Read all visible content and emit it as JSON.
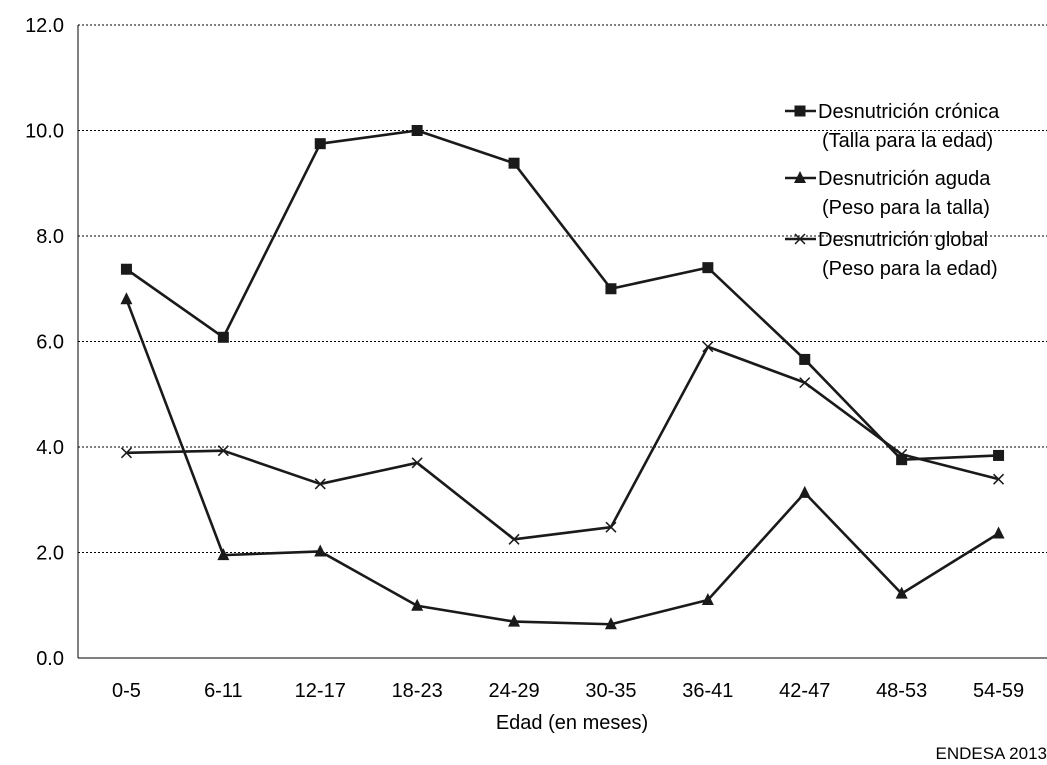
{
  "chart_data": {
    "type": "line",
    "xlabel": "Edad (en meses)",
    "ylabel": "",
    "ylim": [
      0,
      12
    ],
    "y_ticks": [
      "0.0",
      "2.0",
      "4.0",
      "6.0",
      "8.0",
      "10.0",
      "12.0"
    ],
    "grid": "horizontal dotted",
    "legend_position": "right",
    "categories": [
      "0-5",
      "6-11",
      "12-17",
      "18-23",
      "24-29",
      "30-35",
      "36-41",
      "42-47",
      "48-53",
      "54-59"
    ],
    "series": [
      {
        "name": [
          "Desnutrición crónica",
          "(Talla para la edad)"
        ],
        "marker": "square",
        "values": [
          7.37,
          6.08,
          9.75,
          10.0,
          9.38,
          7.0,
          7.4,
          5.66,
          3.76,
          3.84
        ]
      },
      {
        "name": [
          "Desnutrición aguda",
          "(Peso para la talla)"
        ],
        "marker": "triangle",
        "values": [
          6.8,
          1.95,
          2.02,
          0.99,
          0.69,
          0.64,
          1.1,
          3.13,
          1.22,
          2.36
        ]
      },
      {
        "name": [
          "Desnutrición global",
          "(Peso para la edad)"
        ],
        "marker": "x",
        "values": [
          3.89,
          3.93,
          3.3,
          3.7,
          2.25,
          2.48,
          5.9,
          5.22,
          3.86,
          3.39
        ]
      }
    ],
    "source": "ENDESA 2013"
  }
}
